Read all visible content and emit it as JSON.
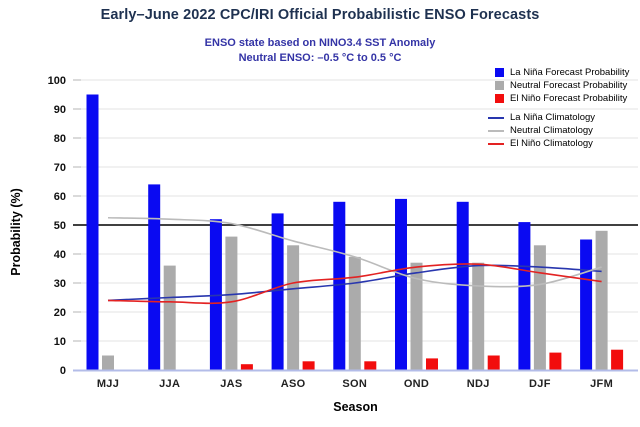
{
  "header": {
    "title": "Early–June 2022 CPC/IRI Official Probabilistic ENSO Forecasts",
    "subtitle1": "ENSO state based on NINO3.4 SST Anomaly",
    "subtitle2": "Neutral ENSO: –0.5 °C to 0.5 °C"
  },
  "chart_data": {
    "type": "bar",
    "title": "Early–June 2022 CPC/IRI Official Probabilistic ENSO Forecasts",
    "xlabel": "Season",
    "ylabel": "Probability (%)",
    "ylim": [
      0,
      100
    ],
    "yticks": [
      0,
      10,
      20,
      30,
      40,
      50,
      60,
      70,
      80,
      90,
      100
    ],
    "grid": "horizontal",
    "legend_position": "top-right",
    "reference_line": 50,
    "reference_line_color": "#000000",
    "axis_line_color": "#b3bce8",
    "gridline_color": "#e3e3e3",
    "tick_color": "#b5b5b5",
    "categories": [
      "MJJ",
      "JJA",
      "JAS",
      "ASO",
      "SON",
      "OND",
      "NDJ",
      "DJF",
      "JFM"
    ],
    "bar_series": [
      {
        "name": "La Niña Forecast Probability",
        "color": "#0a0af2",
        "values": [
          95,
          64,
          52,
          54,
          58,
          59,
          58,
          51,
          45
        ]
      },
      {
        "name": "Neutral Forecast Probability",
        "color": "#ababab",
        "values": [
          5,
          36,
          46,
          43,
          39,
          37,
          37,
          43,
          48
        ]
      },
      {
        "name": "El Niño Forecast Probability",
        "color": "#f20d0d",
        "values": [
          0,
          0,
          2,
          3,
          3,
          4,
          5,
          6,
          7
        ]
      }
    ],
    "line_series": [
      {
        "name": "La Niña Climatology",
        "color": "#2836ae",
        "values": [
          24,
          25,
          26,
          28,
          30,
          33.5,
          36,
          35.5,
          34
        ]
      },
      {
        "name": "Neutral Climatology",
        "color": "#bbbbbb",
        "values": [
          52.5,
          52,
          50.5,
          44.5,
          39,
          31.5,
          29,
          29.5,
          35.5
        ]
      },
      {
        "name": "El Niño Climatology",
        "color": "#e32222",
        "values": [
          24,
          23.5,
          23.5,
          30,
          32,
          35.5,
          36.5,
          33.5,
          30.5
        ]
      }
    ]
  }
}
